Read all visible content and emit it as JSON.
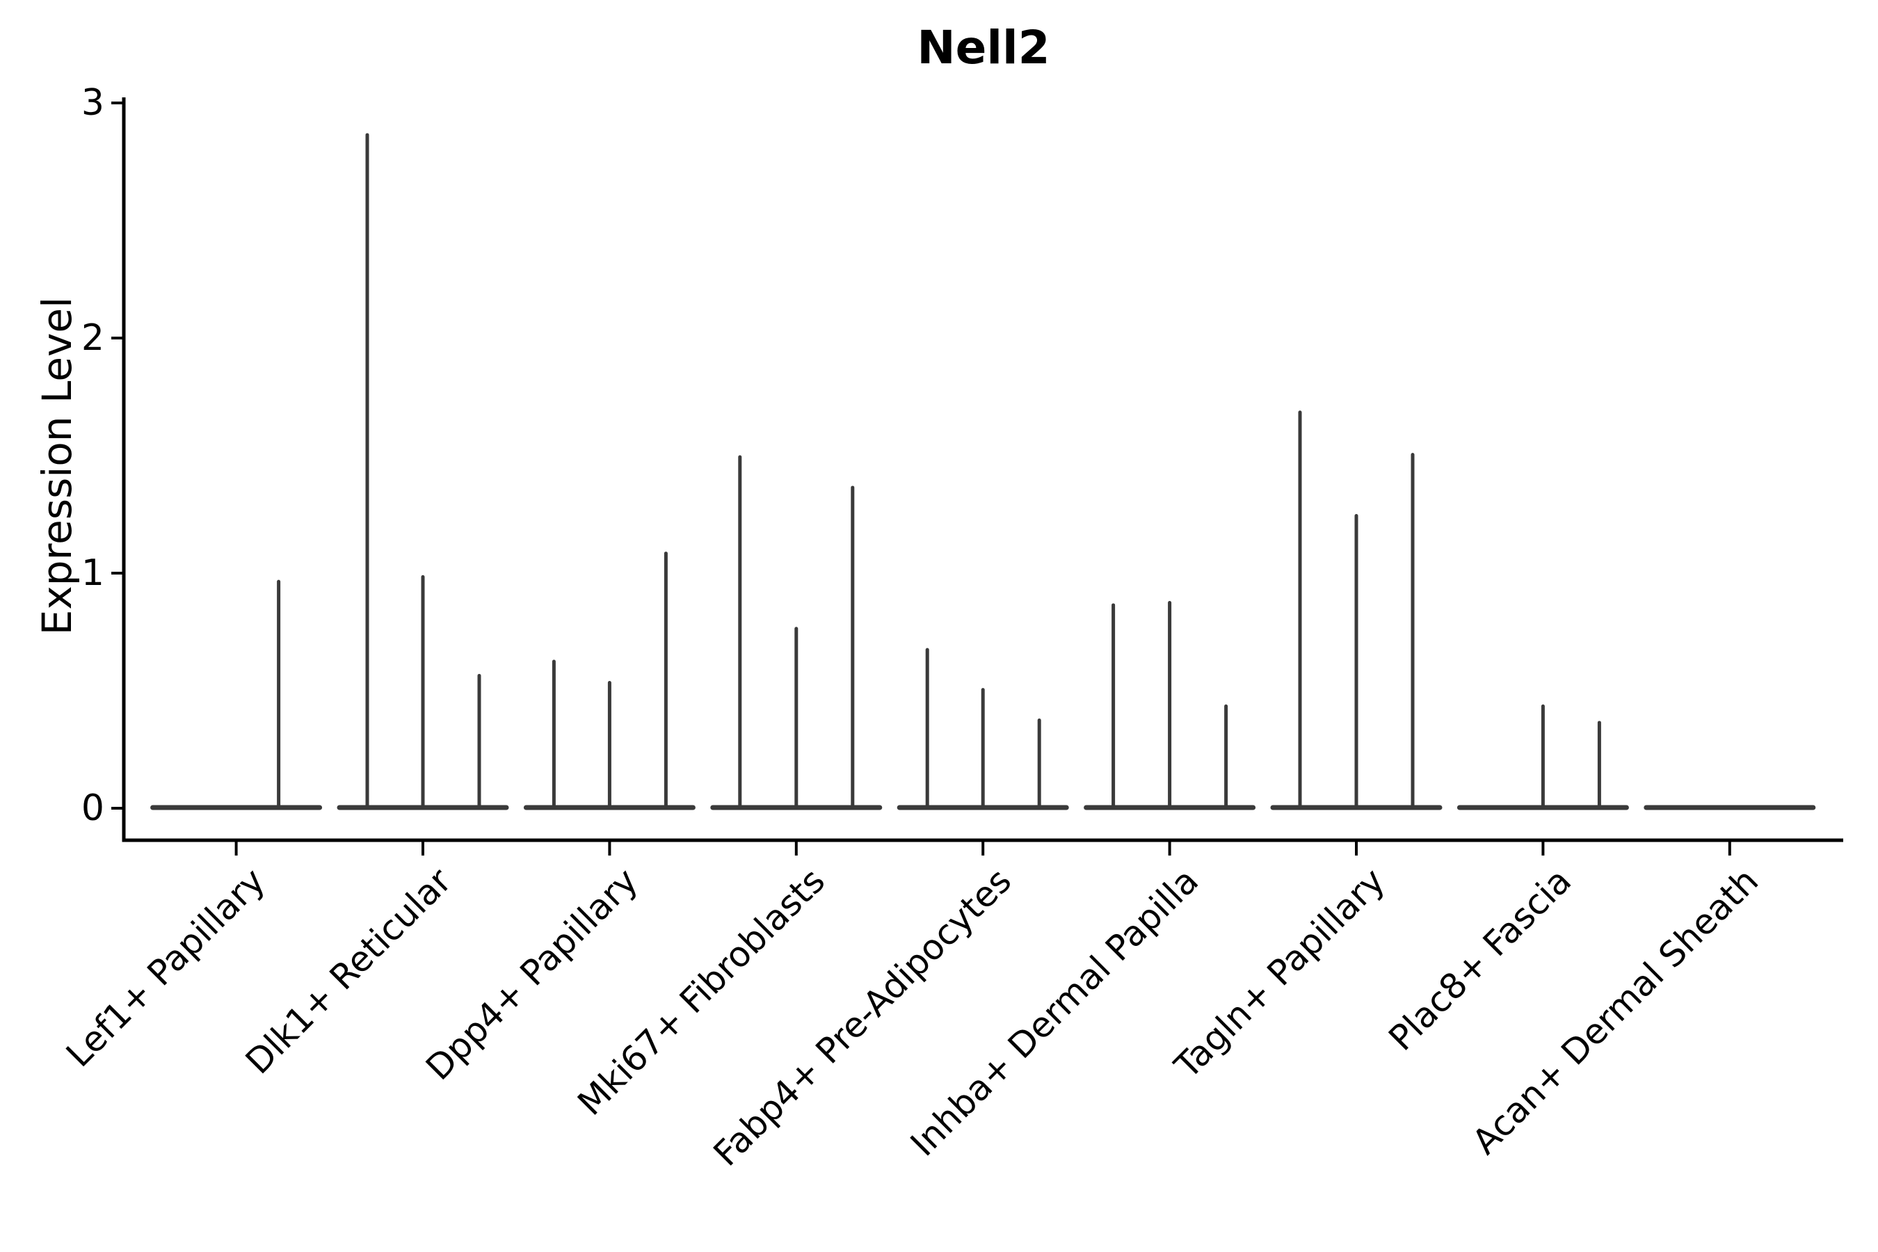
{
  "chart_data": {
    "type": "violin",
    "title": "Nell2",
    "xlabel": "",
    "ylabel": "Expression Level",
    "y_ticks": [
      "0",
      "1",
      "2",
      "3"
    ],
    "ylim": [
      0,
      3
    ],
    "grid": false,
    "legend": null,
    "note": "Stacked-violin style expression plot; each cluster shows up to 3 extremely thin violins (flat base at 0 with narrow spikes up to the max expression value).",
    "categories": [
      {
        "label": "Lef1+ Papillary",
        "violins": [
          {
            "pos": -61,
            "max": 0
          },
          {
            "pos": 61,
            "max": 0.97
          }
        ]
      },
      {
        "label": "Dlk1+ Reticular",
        "violins": [
          {
            "pos": -80,
            "max": 2.87
          },
          {
            "pos": 0,
            "max": 0.99
          },
          {
            "pos": 81,
            "max": 0.57
          }
        ]
      },
      {
        "label": "Dpp4+ Papillary",
        "violins": [
          {
            "pos": -80,
            "max": 0.63
          },
          {
            "pos": 0,
            "max": 0.54
          },
          {
            "pos": 81,
            "max": 1.09
          }
        ]
      },
      {
        "label": "Mki67+ Fibroblasts",
        "violins": [
          {
            "pos": -81,
            "max": 1.5
          },
          {
            "pos": 0,
            "max": 0.77
          },
          {
            "pos": 81,
            "max": 1.37
          }
        ]
      },
      {
        "label": "Fabp4+ Pre-Adipocytes",
        "violins": [
          {
            "pos": -80,
            "max": 0.68
          },
          {
            "pos": 0,
            "max": 0.51
          },
          {
            "pos": 81,
            "max": 0.38
          }
        ]
      },
      {
        "label": "Inhba+ Dermal Papilla",
        "violins": [
          {
            "pos": -81,
            "max": 0.87
          },
          {
            "pos": 0,
            "max": 0.88
          },
          {
            "pos": 81,
            "max": 0.44
          }
        ]
      },
      {
        "label": "Tagln+ Papillary",
        "violins": [
          {
            "pos": -81,
            "max": 1.69
          },
          {
            "pos": 0,
            "max": 1.25
          },
          {
            "pos": 81,
            "max": 1.51
          }
        ]
      },
      {
        "label": "Plac8+ Fascia",
        "violins": [
          {
            "pos": -81,
            "max": 0
          },
          {
            "pos": 0,
            "max": 0.44
          },
          {
            "pos": 81,
            "max": 0.37
          }
        ]
      },
      {
        "label": "Acan+ Dermal Sheath",
        "violins": [
          {
            "pos": -81,
            "max": 0
          },
          {
            "pos": 0,
            "max": 0
          },
          {
            "pos": 81,
            "max": 0
          }
        ]
      }
    ],
    "colors": {
      "violin_stroke": "#3a3a3a",
      "axis": "#000000",
      "text": "#000000",
      "background": "#ffffff"
    }
  }
}
